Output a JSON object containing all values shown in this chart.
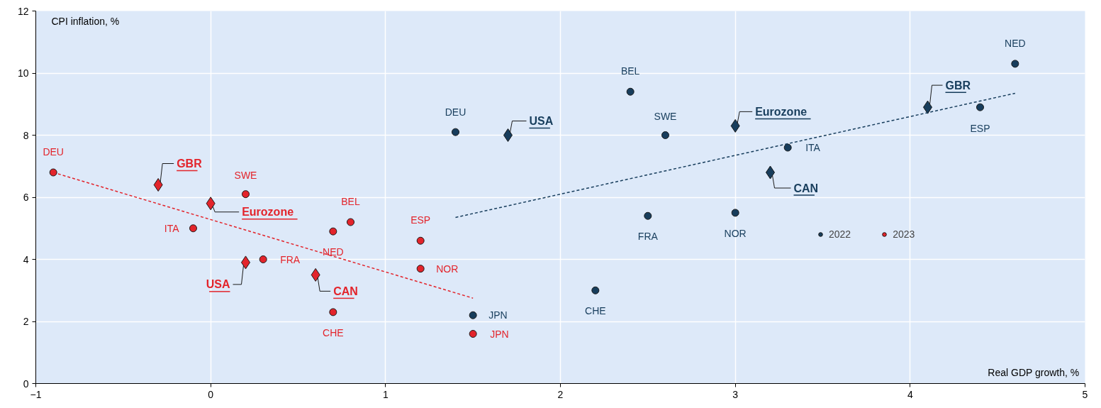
{
  "chart_data": {
    "type": "scatter",
    "xlabel": "Real GDP growth, %",
    "ylabel": "CPI inflation, %",
    "xlim": [
      -1,
      5
    ],
    "xticks": [
      -1,
      0,
      1,
      2,
      3,
      4,
      5
    ],
    "ylim": [
      0,
      12
    ],
    "yticks": [
      0,
      2,
      4,
      6,
      8,
      10,
      12
    ],
    "grid": true,
    "legend": "bottom right",
    "series": [
      {
        "name": "2022",
        "color": "#173d5c",
        "marker": "circle",
        "x": [
          1.4,
          2.4,
          2.6,
          3.3,
          2.5,
          3.0,
          2.2,
          1.5,
          4.4,
          4.6
        ],
        "values": [
          8.1,
          9.4,
          8.0,
          7.6,
          5.4,
          5.5,
          3.0,
          2.2,
          8.9,
          10.3
        ]
      },
      {
        "color": "#173d5c",
        "marker": "diamond",
        "x": [
          1.7,
          3.0,
          3.2,
          4.1
        ],
        "values": [
          8.0,
          8.3,
          6.8,
          8.9
        ]
      },
      {
        "name": "2023",
        "color": "#e3242b",
        "marker": "circle",
        "x": [
          -0.9,
          0.2,
          -0.1,
          0.8,
          0.7,
          1.2,
          1.2,
          0.3,
          0.7,
          1.5
        ],
        "values": [
          6.8,
          6.1,
          5.0,
          5.2,
          4.9,
          4.6,
          3.7,
          4.0,
          2.3,
          1.6
        ]
      },
      {
        "color": "#e3242b",
        "marker": "diamond",
        "x": [
          -0.3,
          0.0,
          0.2,
          0.6
        ],
        "values": [
          6.4,
          5.8,
          3.9,
          3.5
        ]
      },
      {
        "type": "line",
        "line_style": "dashed",
        "color": "#173d5c",
        "x": [
          1.4,
          4.6
        ],
        "values": [
          5.35,
          9.35
        ]
      },
      {
        "type": "line",
        "line_style": "dashed",
        "color": "#e3242b",
        "x": [
          -0.9,
          1.5
        ],
        "values": [
          6.8,
          2.75
        ]
      }
    ],
    "annotations": [
      {
        "text": "DEU",
        "x": 1.4,
        "y": 8.1
      },
      {
        "text": "USA",
        "x": 1.7,
        "y": 8.0
      },
      {
        "text": "BEL",
        "x": 2.4,
        "y": 9.4
      },
      {
        "text": "SWE",
        "x": 2.6,
        "y": 8.0
      },
      {
        "text": "Eurozone",
        "x": 3.0,
        "y": 8.3
      },
      {
        "text": "ITA",
        "x": 3.3,
        "y": 7.6
      },
      {
        "text": "CAN",
        "x": 3.2,
        "y": 6.8
      },
      {
        "text": "FRA",
        "x": 2.5,
        "y": 5.4
      },
      {
        "text": "NOR",
        "x": 3.0,
        "y": 5.5
      },
      {
        "text": "CHE",
        "x": 2.2,
        "y": 3.0
      },
      {
        "text": "JPN",
        "x": 1.5,
        "y": 2.2
      },
      {
        "text": "GBR",
        "x": 4.1,
        "y": 8.9
      },
      {
        "text": "ESP",
        "x": 4.4,
        "y": 8.9
      },
      {
        "text": "NED",
        "x": 4.6,
        "y": 10.3
      },
      {
        "text": "DEU",
        "x": -0.9,
        "y": 6.8
      },
      {
        "text": "GBR",
        "x": -0.3,
        "y": 6.4
      },
      {
        "text": "Eurozone",
        "x": 0.0,
        "y": 5.8
      },
      {
        "text": "SWE",
        "x": 0.2,
        "y": 6.1
      },
      {
        "text": "ITA",
        "x": -0.1,
        "y": 5.0
      },
      {
        "text": "BEL",
        "x": 0.8,
        "y": 5.2
      },
      {
        "text": "NED",
        "x": 0.7,
        "y": 4.9
      },
      {
        "text": "ESP",
        "x": 1.2,
        "y": 4.6
      },
      {
        "text": "NOR",
        "x": 1.2,
        "y": 3.7
      },
      {
        "text": "FRA",
        "x": 0.3,
        "y": 4.0
      },
      {
        "text": "USA",
        "x": 0.2,
        "y": 3.9
      },
      {
        "text": "CAN",
        "x": 0.6,
        "y": 3.5
      },
      {
        "text": "CHE",
        "x": 0.7,
        "y": 2.3
      },
      {
        "text": "JPN",
        "x": 1.5,
        "y": 1.6
      }
    ]
  }
}
